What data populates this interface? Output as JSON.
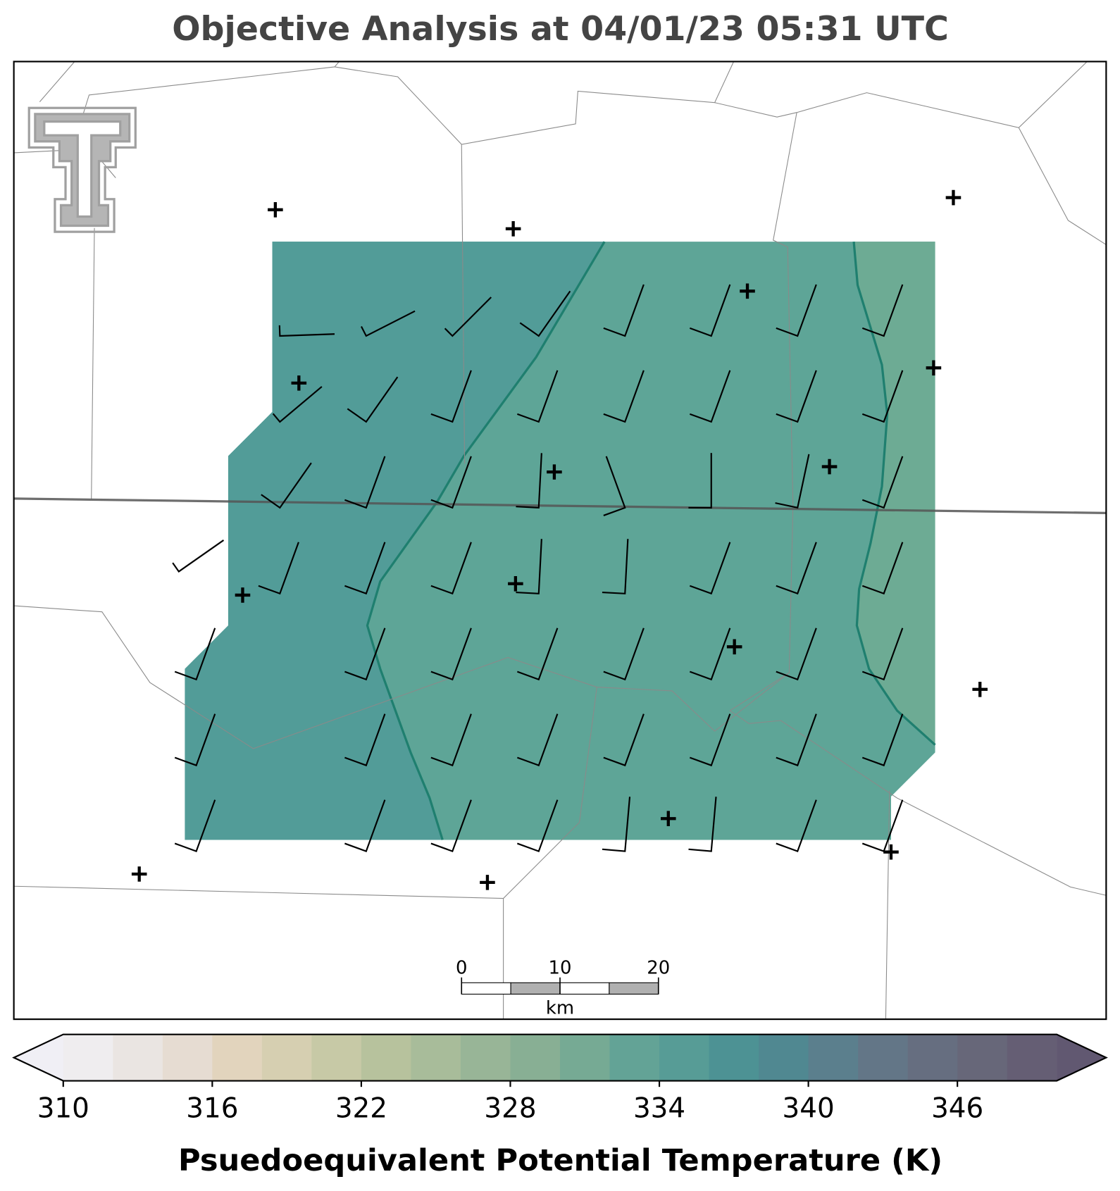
{
  "title": "Objective Analysis at 04/01/23 05:31 UTC",
  "colorbar": {
    "label": "Psuedoequivalent Potential Temperature (K)",
    "levels": [
      310,
      312,
      314,
      316,
      318,
      320,
      322,
      324,
      326,
      328,
      330,
      332,
      334,
      336,
      338,
      340,
      342,
      344,
      346,
      348,
      350
    ],
    "colors": [
      "#efedef",
      "#eae5e2",
      "#e6dcd2",
      "#e2d4bd",
      "#d6cfb1",
      "#c7c9a6",
      "#b7c29d",
      "#a8bc9a",
      "#98b597",
      "#88af94",
      "#76aa94",
      "#63a396",
      "#579c96",
      "#4d9294",
      "#508891",
      "#5b7f8d",
      "#637687",
      "#666e80",
      "#676779",
      "#655e74"
    ],
    "under_color": "#f0eff5",
    "over_color": "#615871",
    "ticks": [
      310,
      316,
      322,
      328,
      334,
      340,
      346
    ]
  },
  "scale_bar": {
    "ticks": [
      0,
      10,
      20
    ],
    "unit": "km"
  }
}
